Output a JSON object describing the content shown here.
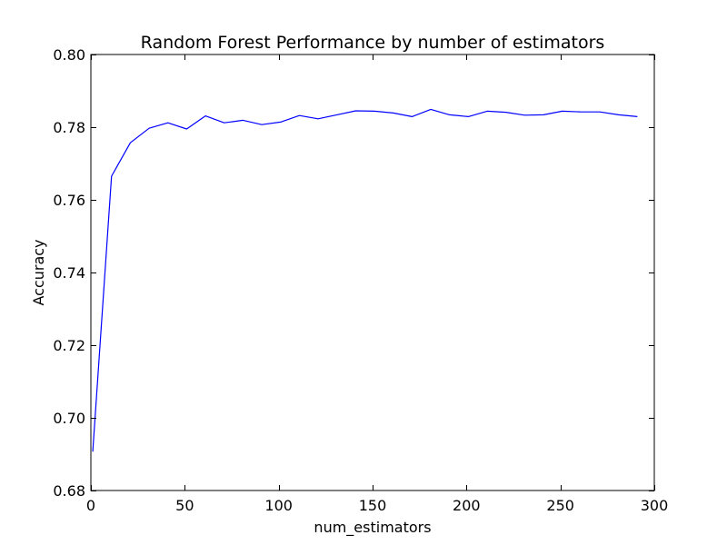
{
  "chart_data": {
    "type": "line",
    "title": "Random Forest Performance by number of estimators",
    "xlabel": "num_estimators",
    "ylabel": "Accuracy",
    "xlim": [
      0,
      300
    ],
    "ylim": [
      0.68,
      0.8
    ],
    "xticks": [
      0,
      50,
      100,
      150,
      200,
      250,
      300
    ],
    "xtick_labels": [
      "0",
      "50",
      "100",
      "150",
      "200",
      "250",
      "300"
    ],
    "yticks": [
      0.68,
      0.7,
      0.72,
      0.74,
      0.76,
      0.78,
      0.8
    ],
    "ytick_labels": [
      "0.68",
      "0.70",
      "0.72",
      "0.74",
      "0.76",
      "0.78",
      "0.80"
    ],
    "grid": false,
    "line_color": "#0000ff",
    "series": [
      {
        "x": [
          1,
          11,
          21,
          31,
          41,
          51,
          61,
          71,
          81,
          91,
          101,
          111,
          121,
          131,
          141,
          151,
          161,
          171,
          181,
          191,
          201,
          211,
          221,
          231,
          241,
          251,
          261,
          271,
          281,
          291
        ],
        "values": [
          0.6907,
          0.7665,
          0.7757,
          0.7797,
          0.7812,
          0.7795,
          0.7831,
          0.7812,
          0.7819,
          0.7807,
          0.7814,
          0.7832,
          0.7823,
          0.7834,
          0.7845,
          0.7844,
          0.7839,
          0.7829,
          0.7849,
          0.7834,
          0.7829,
          0.7844,
          0.7841,
          0.7833,
          0.7834,
          0.7844,
          0.7842,
          0.7842,
          0.7834,
          0.7829
        ]
      }
    ]
  }
}
